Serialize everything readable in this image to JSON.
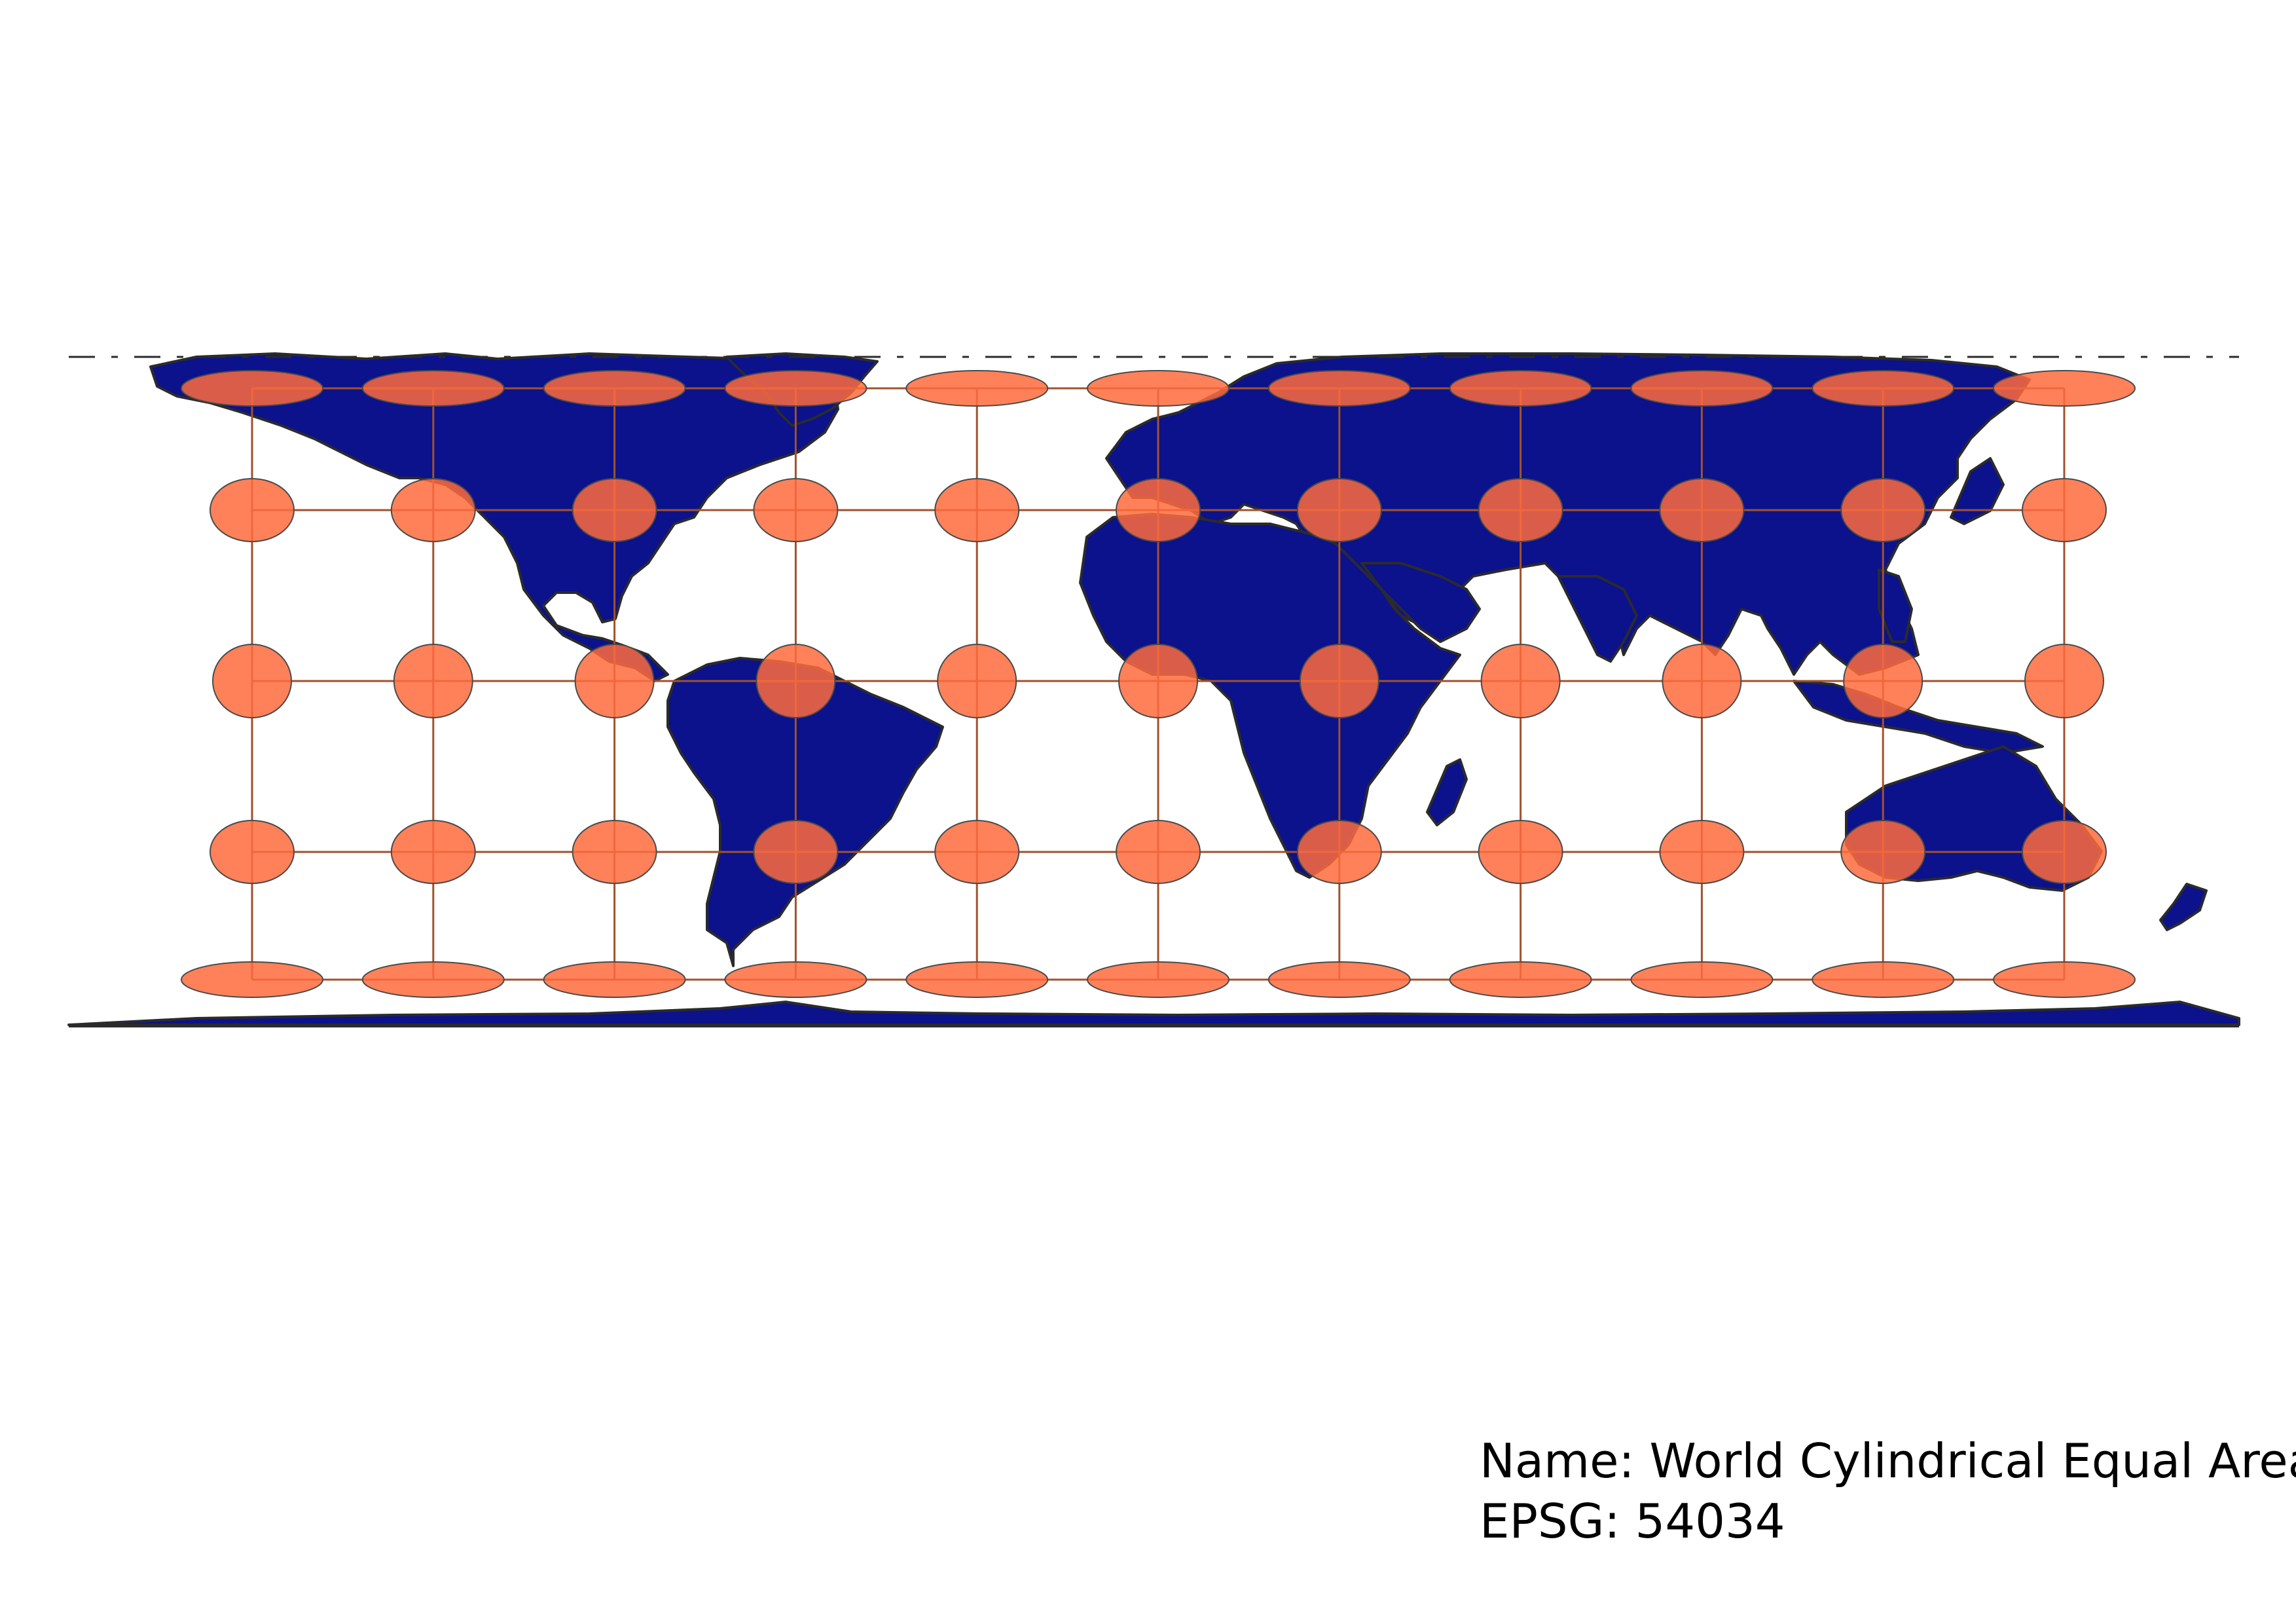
{
  "map": {
    "projection_name_label": "Name: World Cylindrical Equal Area",
    "epsg_label": "EPSG: 54034",
    "land_color": "#0c118c",
    "ocean_color": "#ffffff",
    "coastline_color": "#2b2b2b",
    "tissot_fill_color": "#ff6b3d",
    "tissot_overlap_color": "#c8402a",
    "graticule_color": "#a0522d",
    "graticule_lon_step_deg": 30,
    "graticule_lat_step_deg": 30,
    "tissot_indicatrix_lons": [
      -150,
      -120,
      -90,
      -60,
      -30,
      0,
      30,
      60,
      90,
      120,
      150
    ],
    "tissot_indicatrix_lats": [
      -60,
      -30,
      0,
      30,
      60
    ]
  }
}
